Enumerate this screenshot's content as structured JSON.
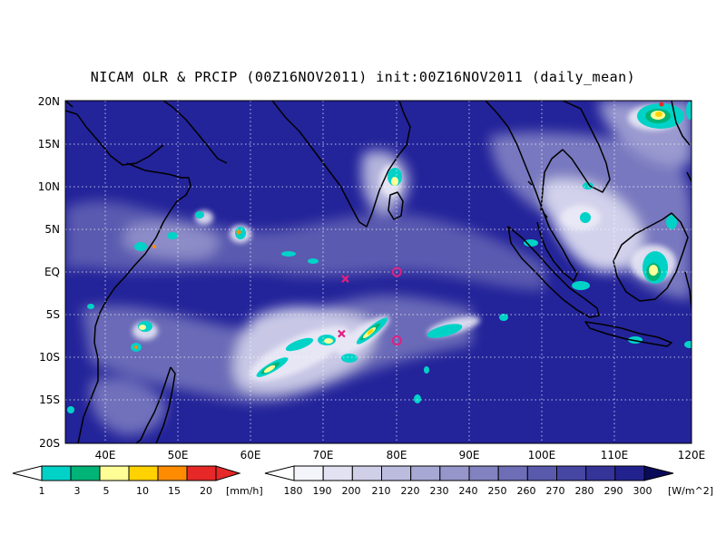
{
  "title": "NICAM OLR & PRCIP (00Z16NOV2011) init:00Z16NOV2011 (daily_mean)",
  "map": {
    "lat_labels": [
      "20N",
      "15N",
      "10N",
      "5N",
      "EQ",
      "5S",
      "10S",
      "15S",
      "20S"
    ],
    "lon_labels": [
      "40E",
      "50E",
      "60E",
      "70E",
      "80E",
      "90E",
      "100E",
      "110E",
      "120E"
    ],
    "lon_range": [
      35,
      120
    ],
    "lat_range": [
      -20,
      20
    ],
    "ocean_color": "#23239a",
    "coastline_color": "#000000",
    "grid_color": "#ffffff",
    "markers": [
      {
        "shape": "x",
        "lon": 73,
        "lat": -0.8,
        "color": "#e0207f"
      },
      {
        "shape": "o",
        "lon": 80,
        "lat": 0,
        "color": "#e0207f"
      },
      {
        "shape": "x",
        "lon": 72.5,
        "lat": -7.2,
        "color": "#e0207f"
      },
      {
        "shape": "o",
        "lon": 80,
        "lat": -8,
        "color": "#e0207f"
      }
    ]
  },
  "precip_colorbar": {
    "labels": [
      "1",
      "3",
      "5",
      "10",
      "15",
      "20"
    ],
    "unit": "[mm/h]",
    "colors": [
      "#00d2c8",
      "#00b478",
      "#fffe96",
      "#ffd200",
      "#ff8c00",
      "#e62828"
    ]
  },
  "olr_colorbar": {
    "labels": [
      "180",
      "190",
      "200",
      "210",
      "220",
      "230",
      "240",
      "250",
      "260",
      "270",
      "280",
      "290",
      "300"
    ],
    "unit": "[W/m^2]",
    "colors": [
      "#f4f4fb",
      "#e2e2f2",
      "#cfcfe8",
      "#bcbcdf",
      "#a8a8d5",
      "#9696cb",
      "#8282c1",
      "#6e6eb7",
      "#5a5aad",
      "#4646a3",
      "#343499",
      "#22228f",
      "#141478",
      "#0a0a5a"
    ]
  }
}
